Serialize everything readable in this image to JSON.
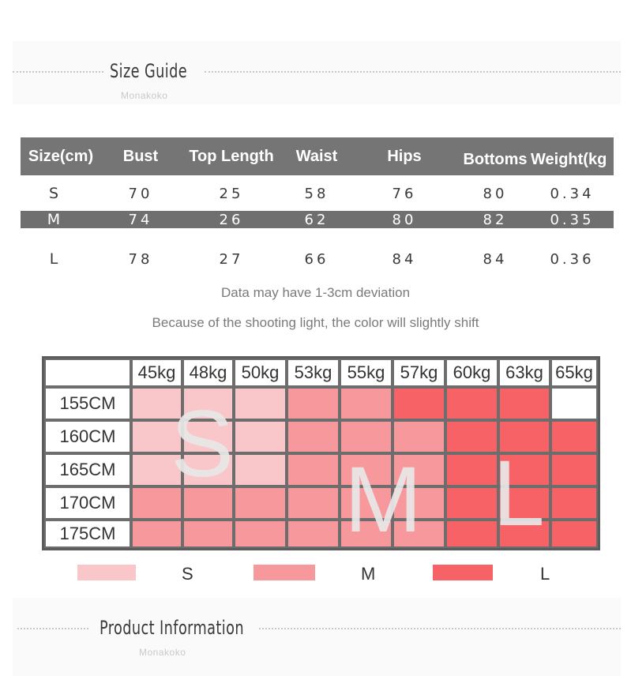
{
  "size_guide": {
    "title": "Size Guide",
    "brand": "Monakoko"
  },
  "size_table": {
    "headers": [
      "Size(cm)",
      "Bust",
      "Top Length",
      "Waist",
      "Hips",
      "Bottoms",
      "Weight(kg"
    ],
    "rows": [
      [
        "S",
        "70",
        "25",
        "58",
        "76",
        "80",
        "0.34"
      ],
      [
        "M",
        "74",
        "26",
        "62",
        "80",
        "82",
        "0.35"
      ],
      [
        "L",
        "78",
        "27",
        "66",
        "84",
        "84",
        "0.36"
      ]
    ]
  },
  "notes": {
    "deviation": "Data may have 1-3cm deviation",
    "color_shift": "Because of the shooting light, the color will slightly shift"
  },
  "chart": {
    "corner": "",
    "weights": [
      "45kg",
      "48kg",
      "50kg",
      "53kg",
      "55kg",
      "57kg",
      "60kg",
      "63kg",
      "65kg"
    ],
    "heights": [
      "155CM",
      "160CM",
      "165CM",
      "170CM",
      "175CM"
    ],
    "grid": [
      [
        "S",
        "S",
        "S",
        "M",
        "M",
        "L",
        "L",
        "L",
        ""
      ],
      [
        "S",
        "S",
        "S",
        "M",
        "M",
        "M",
        "L",
        "L",
        "L"
      ],
      [
        "S",
        "S",
        "S",
        "M",
        "M",
        "M",
        "L",
        "L",
        "L"
      ],
      [
        "M",
        "M",
        "M",
        "M",
        "M",
        "M",
        "L",
        "L",
        "L"
      ],
      [
        "M",
        "M",
        "M",
        "M",
        "M",
        "M",
        "L",
        "L",
        "L"
      ]
    ],
    "overlay_letters": [
      "S",
      "M",
      "L"
    ],
    "colors": {
      "S": "#f9c6c9",
      "M": "#f7989c",
      "L": "#f76266",
      "empty": "#ffffff"
    }
  },
  "legend": [
    {
      "label": "S",
      "color": "#f9c6c9"
    },
    {
      "label": "M",
      "color": "#f7989c"
    },
    {
      "label": "L",
      "color": "#f76266"
    }
  ],
  "product_info": {
    "title": "Product Information",
    "brand": "Monakoko"
  }
}
